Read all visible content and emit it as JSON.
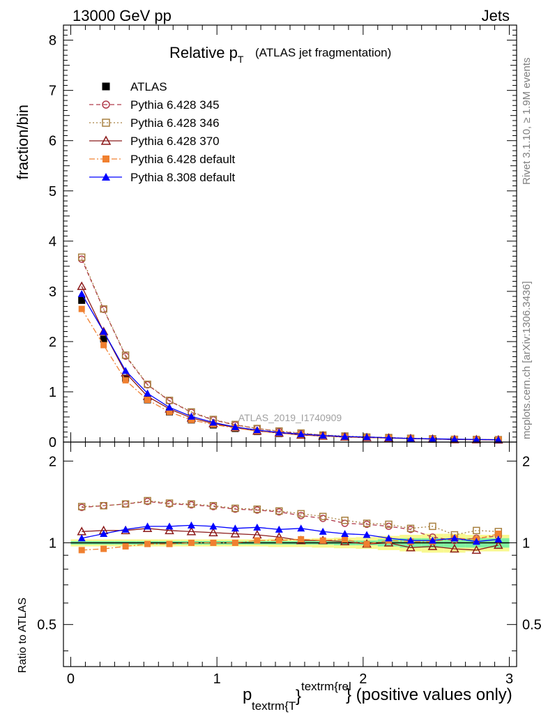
{
  "header": {
    "left": "13000 GeV pp",
    "right": "Jets"
  },
  "side_labels": {
    "rivet": "Rivet 3.1.10, ≥ 1.9M events",
    "mcplots": "mcplots.cern.ch [arXiv:1306.3436]"
  },
  "chart_data": {
    "type": "line",
    "title_main": "Relative p",
    "title_sub": "T",
    "title_paren": "(ATLAS jet fragmentation)",
    "watermark": "ATLAS_2019_I1740909",
    "xlabel_main": "p",
    "xlabel_sub": "textrm{T",
    "xlabel_sup": "textrm{rel",
    "xlabel_brace": "}",
    "xlabel_rest": "} (positive values only)",
    "ylabel_top": "fraction/bin",
    "ylabel_bottom": "Ratio to ATLAS",
    "xlim": [
      -0.05,
      3.05
    ],
    "ylim_top": [
      0,
      8.3
    ],
    "ylim_ratio": [
      0.35,
      2.35
    ],
    "ratio_scale": "log",
    "x_ticks": [
      "0",
      "1",
      "2",
      "3"
    ],
    "y_ticks_top": [
      "0",
      "1",
      "2",
      "3",
      "4",
      "5",
      "6",
      "7",
      "8"
    ],
    "y_ticks_ratio": [
      "0.5",
      "1",
      "2"
    ],
    "legend_position": "top-left",
    "x": [
      0.075,
      0.225,
      0.375,
      0.525,
      0.675,
      0.825,
      0.975,
      1.125,
      1.275,
      1.425,
      1.575,
      1.725,
      1.875,
      2.025,
      2.175,
      2.325,
      2.475,
      2.625,
      2.775,
      2.925
    ],
    "series": [
      {
        "name": "ATLAS",
        "color": "#000000",
        "marker": "square-filled",
        "line": "none",
        "values": [
          2.82,
          2.05,
          1.27,
          0.84,
          0.6,
          0.44,
          0.34,
          0.27,
          0.21,
          0.17,
          0.14,
          0.12,
          0.1,
          0.09,
          0.08,
          0.07,
          0.06,
          0.055,
          0.05,
          0.045
        ]
      },
      {
        "name": "Pythia 6.428 345",
        "color": "#b03a4a",
        "marker": "circle-open",
        "line": "dashed",
        "values": [
          3.64,
          2.64,
          1.71,
          1.14,
          0.82,
          0.59,
          0.44,
          0.34,
          0.27,
          0.21,
          0.17,
          0.14,
          0.11,
          0.1,
          0.09,
          0.07,
          0.06,
          0.055,
          0.05,
          0.045
        ],
        "ratio": [
          1.35,
          1.37,
          1.39,
          1.42,
          1.39,
          1.38,
          1.36,
          1.33,
          1.32,
          1.3,
          1.26,
          1.23,
          1.18,
          1.17,
          1.15,
          1.12,
          1.05,
          1.02,
          1.04,
          1.06
        ]
      },
      {
        "name": "Pythia 6.428 346",
        "color": "#a88040",
        "marker": "square-open",
        "line": "dotted",
        "values": [
          3.68,
          2.65,
          1.73,
          1.15,
          0.83,
          0.6,
          0.45,
          0.35,
          0.27,
          0.22,
          0.18,
          0.14,
          0.12,
          0.1,
          0.09,
          0.075,
          0.065,
          0.055,
          0.052,
          0.048
        ],
        "ratio": [
          1.36,
          1.37,
          1.39,
          1.43,
          1.4,
          1.39,
          1.37,
          1.34,
          1.33,
          1.31,
          1.28,
          1.25,
          1.21,
          1.18,
          1.17,
          1.13,
          1.15,
          1.07,
          1.11,
          1.1
        ]
      },
      {
        "name": "Pythia 6.428 370",
        "color": "#8b1a1a",
        "marker": "triangle-open",
        "line": "solid",
        "values": [
          3.1,
          2.2,
          1.38,
          0.91,
          0.66,
          0.48,
          0.37,
          0.29,
          0.22,
          0.18,
          0.14,
          0.12,
          0.1,
          0.09,
          0.08,
          0.07,
          0.06,
          0.05,
          0.048,
          0.044
        ],
        "ratio": [
          1.1,
          1.11,
          1.11,
          1.13,
          1.11,
          1.1,
          1.09,
          1.08,
          1.07,
          1.05,
          1.02,
          1.02,
          1.01,
          0.99,
          1.0,
          0.96,
          0.97,
          0.95,
          0.94,
          0.98
        ]
      },
      {
        "name": "Pythia 6.428 default",
        "color": "#f08030",
        "marker": "square-filled",
        "line": "dashdot",
        "values": [
          2.65,
          1.93,
          1.23,
          0.84,
          0.6,
          0.44,
          0.35,
          0.28,
          0.22,
          0.18,
          0.15,
          0.12,
          0.1,
          0.09,
          0.08,
          0.07,
          0.062,
          0.057,
          0.052,
          0.048
        ],
        "ratio": [
          0.94,
          0.95,
          0.97,
          0.99,
          0.99,
          1.0,
          1.0,
          1.0,
          1.02,
          1.02,
          1.03,
          1.02,
          1.03,
          0.99,
          1.02,
          1.01,
          1.01,
          1.04,
          1.03,
          1.08
        ]
      },
      {
        "name": "Pythia 8.308 default",
        "color": "#0000ff",
        "marker": "triangle-filled",
        "line": "solid",
        "values": [
          2.95,
          2.2,
          1.42,
          0.97,
          0.69,
          0.51,
          0.39,
          0.3,
          0.24,
          0.19,
          0.16,
          0.13,
          0.11,
          0.1,
          0.085,
          0.072,
          0.065,
          0.058,
          0.052,
          0.047
        ],
        "ratio": [
          1.04,
          1.08,
          1.12,
          1.15,
          1.15,
          1.16,
          1.15,
          1.13,
          1.14,
          1.12,
          1.13,
          1.1,
          1.08,
          1.07,
          1.04,
          1.02,
          1.02,
          1.04,
          1.01,
          1.03
        ]
      }
    ],
    "uncertainty_bands": {
      "inner_color": "#80f0a0",
      "outer_color": "#f8f890",
      "inner_halfwidth": [
        0.015,
        0.015,
        0.015,
        0.015,
        0.015,
        0.015,
        0.015,
        0.015,
        0.015,
        0.015,
        0.015,
        0.015,
        0.02,
        0.02,
        0.03,
        0.04,
        0.04,
        0.04,
        0.04,
        0.04
      ],
      "outer_halfwidth": [
        0.03,
        0.03,
        0.03,
        0.03,
        0.03,
        0.03,
        0.03,
        0.03,
        0.03,
        0.035,
        0.035,
        0.04,
        0.045,
        0.05,
        0.06,
        0.07,
        0.08,
        0.08,
        0.07,
        0.07
      ]
    }
  }
}
